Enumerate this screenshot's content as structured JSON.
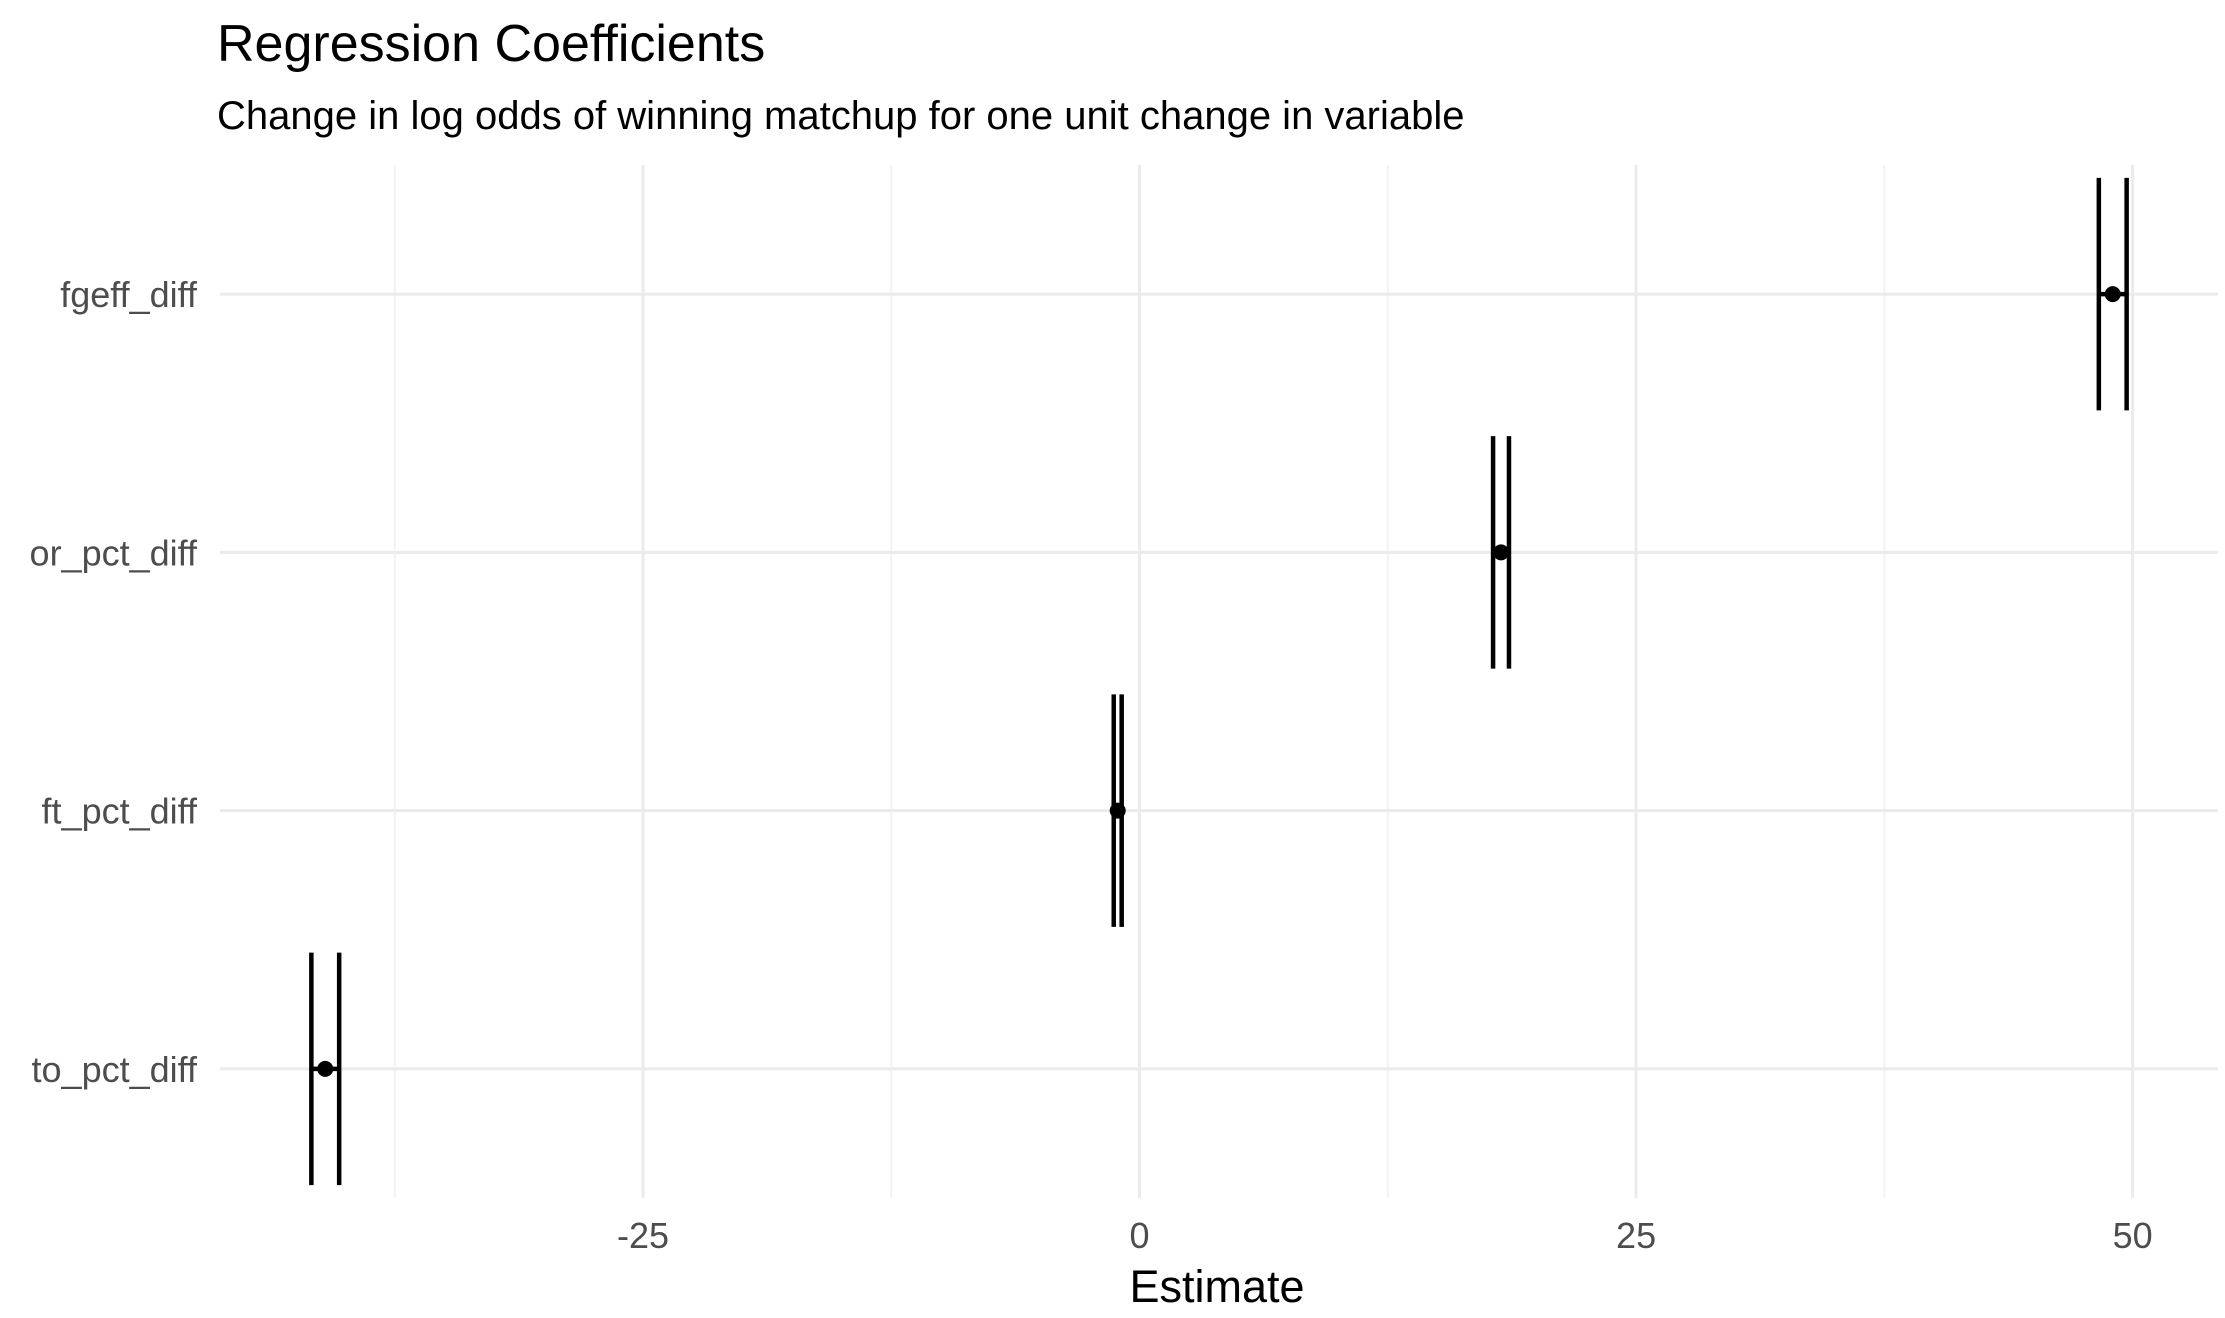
{
  "chart_data": {
    "type": "scatter",
    "title": "Regression Coefficients",
    "subtitle": "Change in log odds of winning matchup for one unit change in variable",
    "xlabel": "Estimate",
    "ylabel": "",
    "xlim": [
      -46.3,
      54.3
    ],
    "x_ticks": [
      -25,
      0,
      25,
      50
    ],
    "x_tick_labels": [
      "-25",
      "0",
      "25",
      "50"
    ],
    "categories": [
      "fgeff_diff",
      "or_pct_diff",
      "ft_pct_diff",
      "to_pct_diff"
    ],
    "series": [
      {
        "points": [
          {
            "term": "fgeff_diff",
            "estimate": 49.0,
            "low": 48.3,
            "high": 49.7
          },
          {
            "term": "or_pct_diff",
            "estimate": 18.2,
            "low": 17.8,
            "high": 18.6
          },
          {
            "term": "ft_pct_diff",
            "estimate": -1.1,
            "low": -1.3,
            "high": -0.9
          },
          {
            "term": "to_pct_diff",
            "estimate": -41.0,
            "low": -41.7,
            "high": -40.3
          }
        ]
      }
    ],
    "grid": true,
    "legend": "none",
    "colors": {
      "point": "#000000",
      "grid_major": "#ebebeb",
      "grid_minor": "#f3f3f3",
      "tick_text": "#4d4d4d"
    }
  }
}
